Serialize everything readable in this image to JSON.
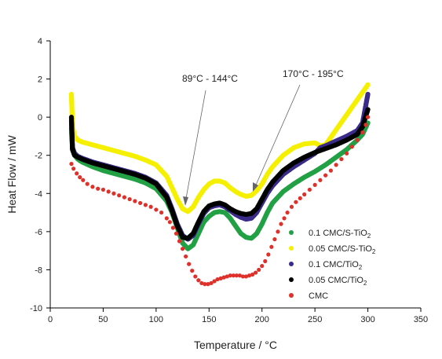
{
  "chart_data": {
    "type": "scatter",
    "xlabel": "Temperature / °C",
    "ylabel": "Heat Flow  / mW",
    "xlim": [
      0,
      350
    ],
    "ylim": [
      -10,
      4
    ],
    "xticks": [
      0,
      50,
      100,
      150,
      200,
      250,
      300,
      350
    ],
    "yticks": [
      -10,
      -8,
      -6,
      -4,
      -2,
      0,
      2,
      4
    ],
    "grid": false,
    "legend_position": "bottom-right",
    "annotations": [
      {
        "text": "89°C - 144°C",
        "arrow_to": [
          127,
          -4.5
        ]
      },
      {
        "text": "170°C - 195°C",
        "arrow_to": [
          190,
          -4.0
        ]
      }
    ],
    "series": [
      {
        "name": "0.1 CMC/S-TiO2",
        "label_main": "0.1 CMC/S-TiO",
        "label_sub": "2",
        "color": "#22a045",
        "x": [
          20,
          21,
          23,
          26,
          30,
          40,
          50,
          60,
          70,
          80,
          90,
          100,
          110,
          115,
          120,
          125,
          130,
          135,
          140,
          145,
          150,
          155,
          160,
          165,
          170,
          175,
          180,
          185,
          190,
          195,
          200,
          205,
          210,
          220,
          230,
          240,
          250,
          260,
          270,
          280,
          290,
          295,
          300
        ],
        "y": [
          -0.6,
          -1.7,
          -2.0,
          -2.2,
          -2.35,
          -2.6,
          -2.8,
          -2.95,
          -3.1,
          -3.25,
          -3.45,
          -3.75,
          -4.4,
          -5.0,
          -5.8,
          -6.6,
          -6.9,
          -6.7,
          -6.1,
          -5.5,
          -5.2,
          -5.0,
          -4.95,
          -5.0,
          -5.3,
          -5.7,
          -6.1,
          -6.3,
          -6.35,
          -6.1,
          -5.6,
          -5.0,
          -4.5,
          -3.9,
          -3.5,
          -3.15,
          -2.85,
          -2.5,
          -2.1,
          -1.7,
          -1.2,
          -0.9,
          -0.3
        ]
      },
      {
        "name": "0.05 CMC/S-TiO2",
        "label_main": "0.05 CMC/S-TiO",
        "label_sub": "2",
        "color": "#f5f000",
        "x": [
          20,
          21,
          23,
          26,
          30,
          40,
          50,
          60,
          70,
          80,
          90,
          100,
          110,
          115,
          120,
          125,
          130,
          135,
          140,
          145,
          150,
          155,
          160,
          165,
          170,
          175,
          180,
          185,
          190,
          195,
          200,
          205,
          210,
          220,
          230,
          240,
          250,
          255,
          260,
          300
        ],
        "y": [
          1.2,
          -0.5,
          -1.0,
          -1.2,
          -1.3,
          -1.45,
          -1.6,
          -1.75,
          -1.9,
          -2.05,
          -2.25,
          -2.5,
          -3.1,
          -3.7,
          -4.3,
          -4.8,
          -4.95,
          -4.7,
          -4.2,
          -3.8,
          -3.5,
          -3.35,
          -3.35,
          -3.45,
          -3.7,
          -3.9,
          -4.05,
          -4.15,
          -4.1,
          -3.85,
          -3.5,
          -3.0,
          -2.6,
          -2.0,
          -1.6,
          -1.4,
          -1.35,
          -1.5,
          -1.45,
          1.7
        ]
      },
      {
        "name": "0.1 CMC/TiO2",
        "label_main": "0.1 CMC/TiO",
        "label_sub": "2",
        "color": "#3a2a8a",
        "x": [
          20,
          21,
          23,
          26,
          30,
          40,
          50,
          60,
          70,
          80,
          90,
          100,
          110,
          115,
          120,
          125,
          130,
          135,
          140,
          145,
          150,
          155,
          160,
          165,
          170,
          175,
          180,
          185,
          190,
          195,
          200,
          205,
          210,
          220,
          230,
          240,
          250,
          255,
          260,
          270,
          280,
          290,
          295,
          300
        ],
        "y": [
          -0.2,
          -1.6,
          -1.9,
          -2.05,
          -2.15,
          -2.35,
          -2.5,
          -2.65,
          -2.8,
          -2.95,
          -3.15,
          -3.45,
          -4.1,
          -4.8,
          -5.6,
          -6.2,
          -6.4,
          -6.2,
          -5.6,
          -5.05,
          -4.75,
          -4.65,
          -4.6,
          -4.7,
          -4.9,
          -5.1,
          -5.25,
          -5.35,
          -5.3,
          -5.0,
          -4.5,
          -4.0,
          -3.6,
          -3.0,
          -2.6,
          -2.25,
          -1.9,
          -1.6,
          -1.5,
          -1.25,
          -1.0,
          -0.7,
          -0.3,
          1.2
        ]
      },
      {
        "name": "0.05 CMC/TiO2",
        "label_main": "0.05 CMC/TiO",
        "label_sub": "2",
        "color": "#000000",
        "x": [
          20,
          21,
          23,
          26,
          30,
          40,
          50,
          60,
          70,
          80,
          90,
          100,
          110,
          115,
          120,
          125,
          130,
          135,
          140,
          145,
          150,
          155,
          160,
          165,
          170,
          175,
          180,
          185,
          190,
          195,
          200,
          205,
          210,
          220,
          230,
          240,
          250,
          260,
          270,
          280,
          290,
          295,
          300
        ],
        "y": [
          0.0,
          -1.7,
          -2.0,
          -2.1,
          -2.2,
          -2.4,
          -2.55,
          -2.7,
          -2.85,
          -3.0,
          -3.2,
          -3.5,
          -4.2,
          -4.9,
          -5.7,
          -6.3,
          -6.35,
          -6.1,
          -5.5,
          -4.95,
          -4.65,
          -4.55,
          -4.5,
          -4.6,
          -4.8,
          -4.95,
          -5.05,
          -5.1,
          -5.05,
          -4.8,
          -4.3,
          -3.8,
          -3.4,
          -2.8,
          -2.4,
          -2.1,
          -1.85,
          -1.65,
          -1.45,
          -1.2,
          -0.9,
          -0.5,
          0.4
        ]
      },
      {
        "name": "CMC",
        "label_main": "CMC",
        "label_sub": "",
        "color": "#e0302a",
        "x": [
          20,
          22,
          25,
          28,
          31,
          35,
          40,
          45,
          50,
          55,
          60,
          65,
          70,
          75,
          80,
          85,
          90,
          95,
          100,
          105,
          110,
          113,
          116,
          119,
          122,
          125,
          128,
          131,
          134,
          137,
          140,
          143,
          146,
          149,
          152,
          155,
          158,
          161,
          164,
          167,
          170,
          173,
          176,
          179,
          182,
          185,
          188,
          191,
          194,
          197,
          200,
          203,
          206,
          209,
          212,
          215,
          218,
          221,
          224,
          228,
          232,
          236,
          240,
          245,
          250,
          255,
          260,
          265,
          270,
          275,
          280,
          285,
          290,
          295,
          298,
          300
        ],
        "y": [
          -2.45,
          -2.7,
          -2.95,
          -3.15,
          -3.3,
          -3.5,
          -3.65,
          -3.75,
          -3.8,
          -3.9,
          -4.0,
          -4.1,
          -4.2,
          -4.3,
          -4.4,
          -4.5,
          -4.6,
          -4.7,
          -4.85,
          -5.0,
          -5.3,
          -5.5,
          -5.8,
          -6.1,
          -6.5,
          -6.9,
          -7.3,
          -7.7,
          -8.05,
          -8.35,
          -8.55,
          -8.7,
          -8.75,
          -8.75,
          -8.7,
          -8.6,
          -8.5,
          -8.45,
          -8.4,
          -8.35,
          -8.3,
          -8.3,
          -8.3,
          -8.3,
          -8.35,
          -8.35,
          -8.3,
          -8.25,
          -8.15,
          -8.0,
          -7.8,
          -7.55,
          -7.2,
          -6.8,
          -6.4,
          -6.0,
          -5.6,
          -5.3,
          -5.0,
          -4.7,
          -4.45,
          -4.25,
          -4.05,
          -3.8,
          -3.55,
          -3.3,
          -3.05,
          -2.8,
          -2.5,
          -2.2,
          -1.9,
          -1.55,
          -1.2,
          -0.8,
          -0.4,
          0.0
        ]
      }
    ]
  }
}
